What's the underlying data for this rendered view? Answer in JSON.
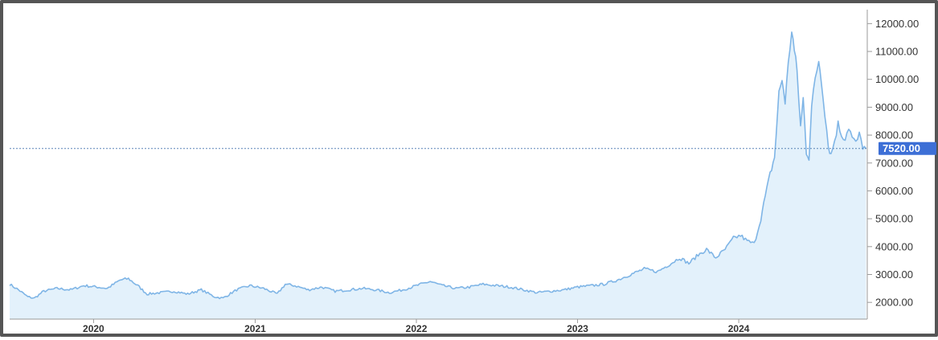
{
  "chart_data": {
    "type": "area",
    "title": "",
    "xlabel": "",
    "ylabel": "",
    "x_ticks": [
      "2020",
      "2021",
      "2022",
      "2023",
      "2024"
    ],
    "y_ticks": [
      "2000.00",
      "3000.00",
      "4000.00",
      "5000.00",
      "6000.00",
      "7000.00",
      "8000.00",
      "9000.00",
      "10000.00",
      "11000.00",
      "12000.00"
    ],
    "ylim": [
      1400,
      12500
    ],
    "xlim": [
      "2019-06-25",
      "2024-10-18"
    ],
    "grid": false,
    "legend": "none",
    "current_value": 7520,
    "current_value_label": "7520.00",
    "colors": {
      "line": "#7fb5e6",
      "fill": "#e3f1fb",
      "marker": "#3d6fd6",
      "reference_line": "#5b86b8"
    },
    "series": [
      {
        "values": [
          [
            "2019-06-25",
            2650
          ],
          [
            "2019-07-15",
            2450
          ],
          [
            "2019-08-05",
            2200
          ],
          [
            "2019-08-20",
            2150
          ],
          [
            "2019-09-10",
            2400
          ],
          [
            "2019-10-10",
            2500
          ],
          [
            "2019-11-10",
            2450
          ],
          [
            "2019-12-10",
            2600
          ],
          [
            "2020-01-10",
            2550
          ],
          [
            "2020-02-01",
            2500
          ],
          [
            "2020-03-01",
            2800
          ],
          [
            "2020-03-20",
            2850
          ],
          [
            "2020-04-10",
            2600
          ],
          [
            "2020-05-01",
            2300
          ],
          [
            "2020-06-01",
            2350
          ],
          [
            "2020-07-01",
            2400
          ],
          [
            "2020-08-01",
            2300
          ],
          [
            "2020-09-01",
            2450
          ],
          [
            "2020-10-01",
            2200
          ],
          [
            "2020-10-20",
            2150
          ],
          [
            "2020-11-20",
            2450
          ],
          [
            "2020-12-20",
            2600
          ],
          [
            "2021-01-20",
            2500
          ],
          [
            "2021-02-20",
            2300
          ],
          [
            "2021-03-10",
            2650
          ],
          [
            "2021-04-01",
            2600
          ],
          [
            "2021-05-01",
            2450
          ],
          [
            "2021-06-01",
            2550
          ],
          [
            "2021-07-01",
            2400
          ],
          [
            "2021-08-01",
            2450
          ],
          [
            "2021-09-01",
            2500
          ],
          [
            "2021-10-01",
            2450
          ],
          [
            "2021-11-01",
            2350
          ],
          [
            "2021-12-01",
            2450
          ],
          [
            "2022-01-01",
            2600
          ],
          [
            "2022-02-01",
            2750
          ],
          [
            "2022-03-01",
            2600
          ],
          [
            "2022-04-01",
            2500
          ],
          [
            "2022-05-01",
            2550
          ],
          [
            "2022-06-01",
            2650
          ],
          [
            "2022-07-01",
            2600
          ],
          [
            "2022-08-01",
            2550
          ],
          [
            "2022-09-01",
            2450
          ],
          [
            "2022-10-01",
            2350
          ],
          [
            "2022-11-01",
            2400
          ],
          [
            "2022-12-01",
            2450
          ],
          [
            "2023-01-01",
            2550
          ],
          [
            "2023-02-01",
            2600
          ],
          [
            "2023-03-01",
            2650
          ],
          [
            "2023-04-01",
            2800
          ],
          [
            "2023-05-01",
            3000
          ],
          [
            "2023-06-01",
            3200
          ],
          [
            "2023-07-01",
            3100
          ],
          [
            "2023-08-01",
            3400
          ],
          [
            "2023-08-20",
            3600
          ],
          [
            "2023-09-10",
            3400
          ],
          [
            "2023-10-01",
            3700
          ],
          [
            "2023-10-20",
            3900
          ],
          [
            "2023-11-10",
            3600
          ],
          [
            "2023-12-01",
            3900
          ],
          [
            "2023-12-20",
            4300
          ],
          [
            "2024-01-05",
            4400
          ],
          [
            "2024-01-20",
            4200
          ],
          [
            "2024-02-05",
            4100
          ],
          [
            "2024-02-20",
            5000
          ],
          [
            "2024-03-01",
            5800
          ],
          [
            "2024-03-12",
            6600
          ],
          [
            "2024-03-22",
            7200
          ],
          [
            "2024-04-01",
            9500
          ],
          [
            "2024-04-08",
            10000
          ],
          [
            "2024-04-15",
            9200
          ],
          [
            "2024-04-22",
            10500
          ],
          [
            "2024-04-30",
            11800
          ],
          [
            "2024-05-06",
            11000
          ],
          [
            "2024-05-12",
            10300
          ],
          [
            "2024-05-20",
            8300
          ],
          [
            "2024-05-26",
            9300
          ],
          [
            "2024-06-02",
            7400
          ],
          [
            "2024-06-08",
            7200
          ],
          [
            "2024-06-14",
            9000
          ],
          [
            "2024-06-22",
            10000
          ],
          [
            "2024-06-30",
            10700
          ],
          [
            "2024-07-06",
            10000
          ],
          [
            "2024-07-14",
            8800
          ],
          [
            "2024-07-22",
            7600
          ],
          [
            "2024-07-28",
            7300
          ],
          [
            "2024-08-05",
            7800
          ],
          [
            "2024-08-13",
            8400
          ],
          [
            "2024-08-21",
            8000
          ],
          [
            "2024-08-29",
            7900
          ],
          [
            "2024-09-06",
            8300
          ],
          [
            "2024-09-14",
            7900
          ],
          [
            "2024-09-22",
            7700
          ],
          [
            "2024-09-30",
            8000
          ],
          [
            "2024-10-08",
            7600
          ],
          [
            "2024-10-15",
            7520
          ]
        ]
      }
    ]
  }
}
